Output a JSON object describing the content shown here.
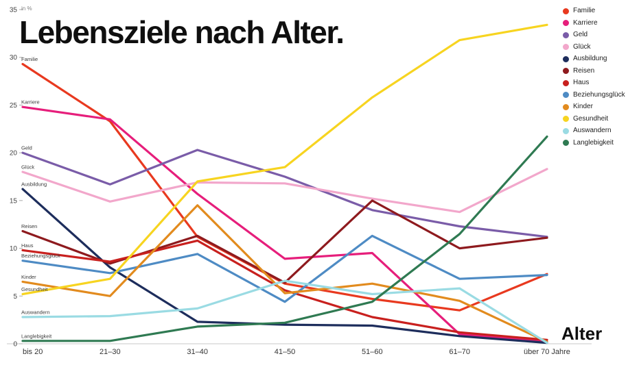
{
  "chart_data": {
    "type": "line",
    "title": "Lebensziele nach Alter.",
    "xlabel": "Alter",
    "ylabel": "in %",
    "ylim": [
      0,
      35
    ],
    "yticks": [
      0,
      5,
      10,
      15,
      20,
      25,
      30,
      35
    ],
    "grid": false,
    "legend_position": "right",
    "categories": [
      "bis 20",
      "21–30",
      "31–40",
      "41–50",
      "51–60",
      "61–70",
      "über 70 Jahre"
    ],
    "series": [
      {
        "name": "Familie",
        "color": "#e8391f",
        "values": [
          29.3,
          23.3,
          11.2,
          6.3,
          4.7,
          3.5,
          7.3
        ]
      },
      {
        "name": "Karriere",
        "color": "#e61e7b",
        "values": [
          24.8,
          23.5,
          15.7,
          8.9,
          9.5,
          1.0,
          0.2
        ]
      },
      {
        "name": "Geld",
        "color": "#7a5ca8",
        "values": [
          20.0,
          16.7,
          20.3,
          17.5,
          14.0,
          12.3,
          11.2
        ]
      },
      {
        "name": "Glück",
        "color": "#f2a7cb",
        "values": [
          18.0,
          14.9,
          16.9,
          16.8,
          15.2,
          13.8,
          18.3
        ]
      },
      {
        "name": "Ausbildung",
        "color": "#1d2d5c",
        "values": [
          16.2,
          8.0,
          2.3,
          2.0,
          1.9,
          0.8,
          0.1
        ]
      },
      {
        "name": "Reisen",
        "color": "#8e1a1e",
        "values": [
          11.8,
          8.4,
          11.3,
          6.4,
          15.0,
          10.0,
          11.1
        ]
      },
      {
        "name": "Haus",
        "color": "#c8201e",
        "values": [
          9.8,
          8.6,
          10.8,
          5.6,
          2.8,
          1.2,
          0.4
        ]
      },
      {
        "name": "Beziehungsglück",
        "color": "#4e8bc4",
        "values": [
          8.7,
          7.4,
          9.4,
          4.4,
          11.3,
          6.8,
          7.2
        ]
      },
      {
        "name": "Kinder",
        "color": "#e28b1e",
        "values": [
          6.5,
          5.0,
          14.5,
          5.3,
          6.3,
          4.5,
          0.2
        ]
      },
      {
        "name": "Gesundheit",
        "color": "#f7d420",
        "values": [
          5.2,
          6.8,
          17.0,
          18.5,
          25.8,
          31.8,
          33.4
        ]
      },
      {
        "name": "Auswandern",
        "color": "#9adbe3",
        "values": [
          2.8,
          2.9,
          3.7,
          6.6,
          5.2,
          5.8,
          0.1
        ]
      },
      {
        "name": "Langlebigkeit",
        "color": "#2f7a52",
        "values": [
          0.3,
          0.3,
          1.8,
          2.2,
          4.4,
          11.5,
          21.7
        ]
      }
    ]
  }
}
